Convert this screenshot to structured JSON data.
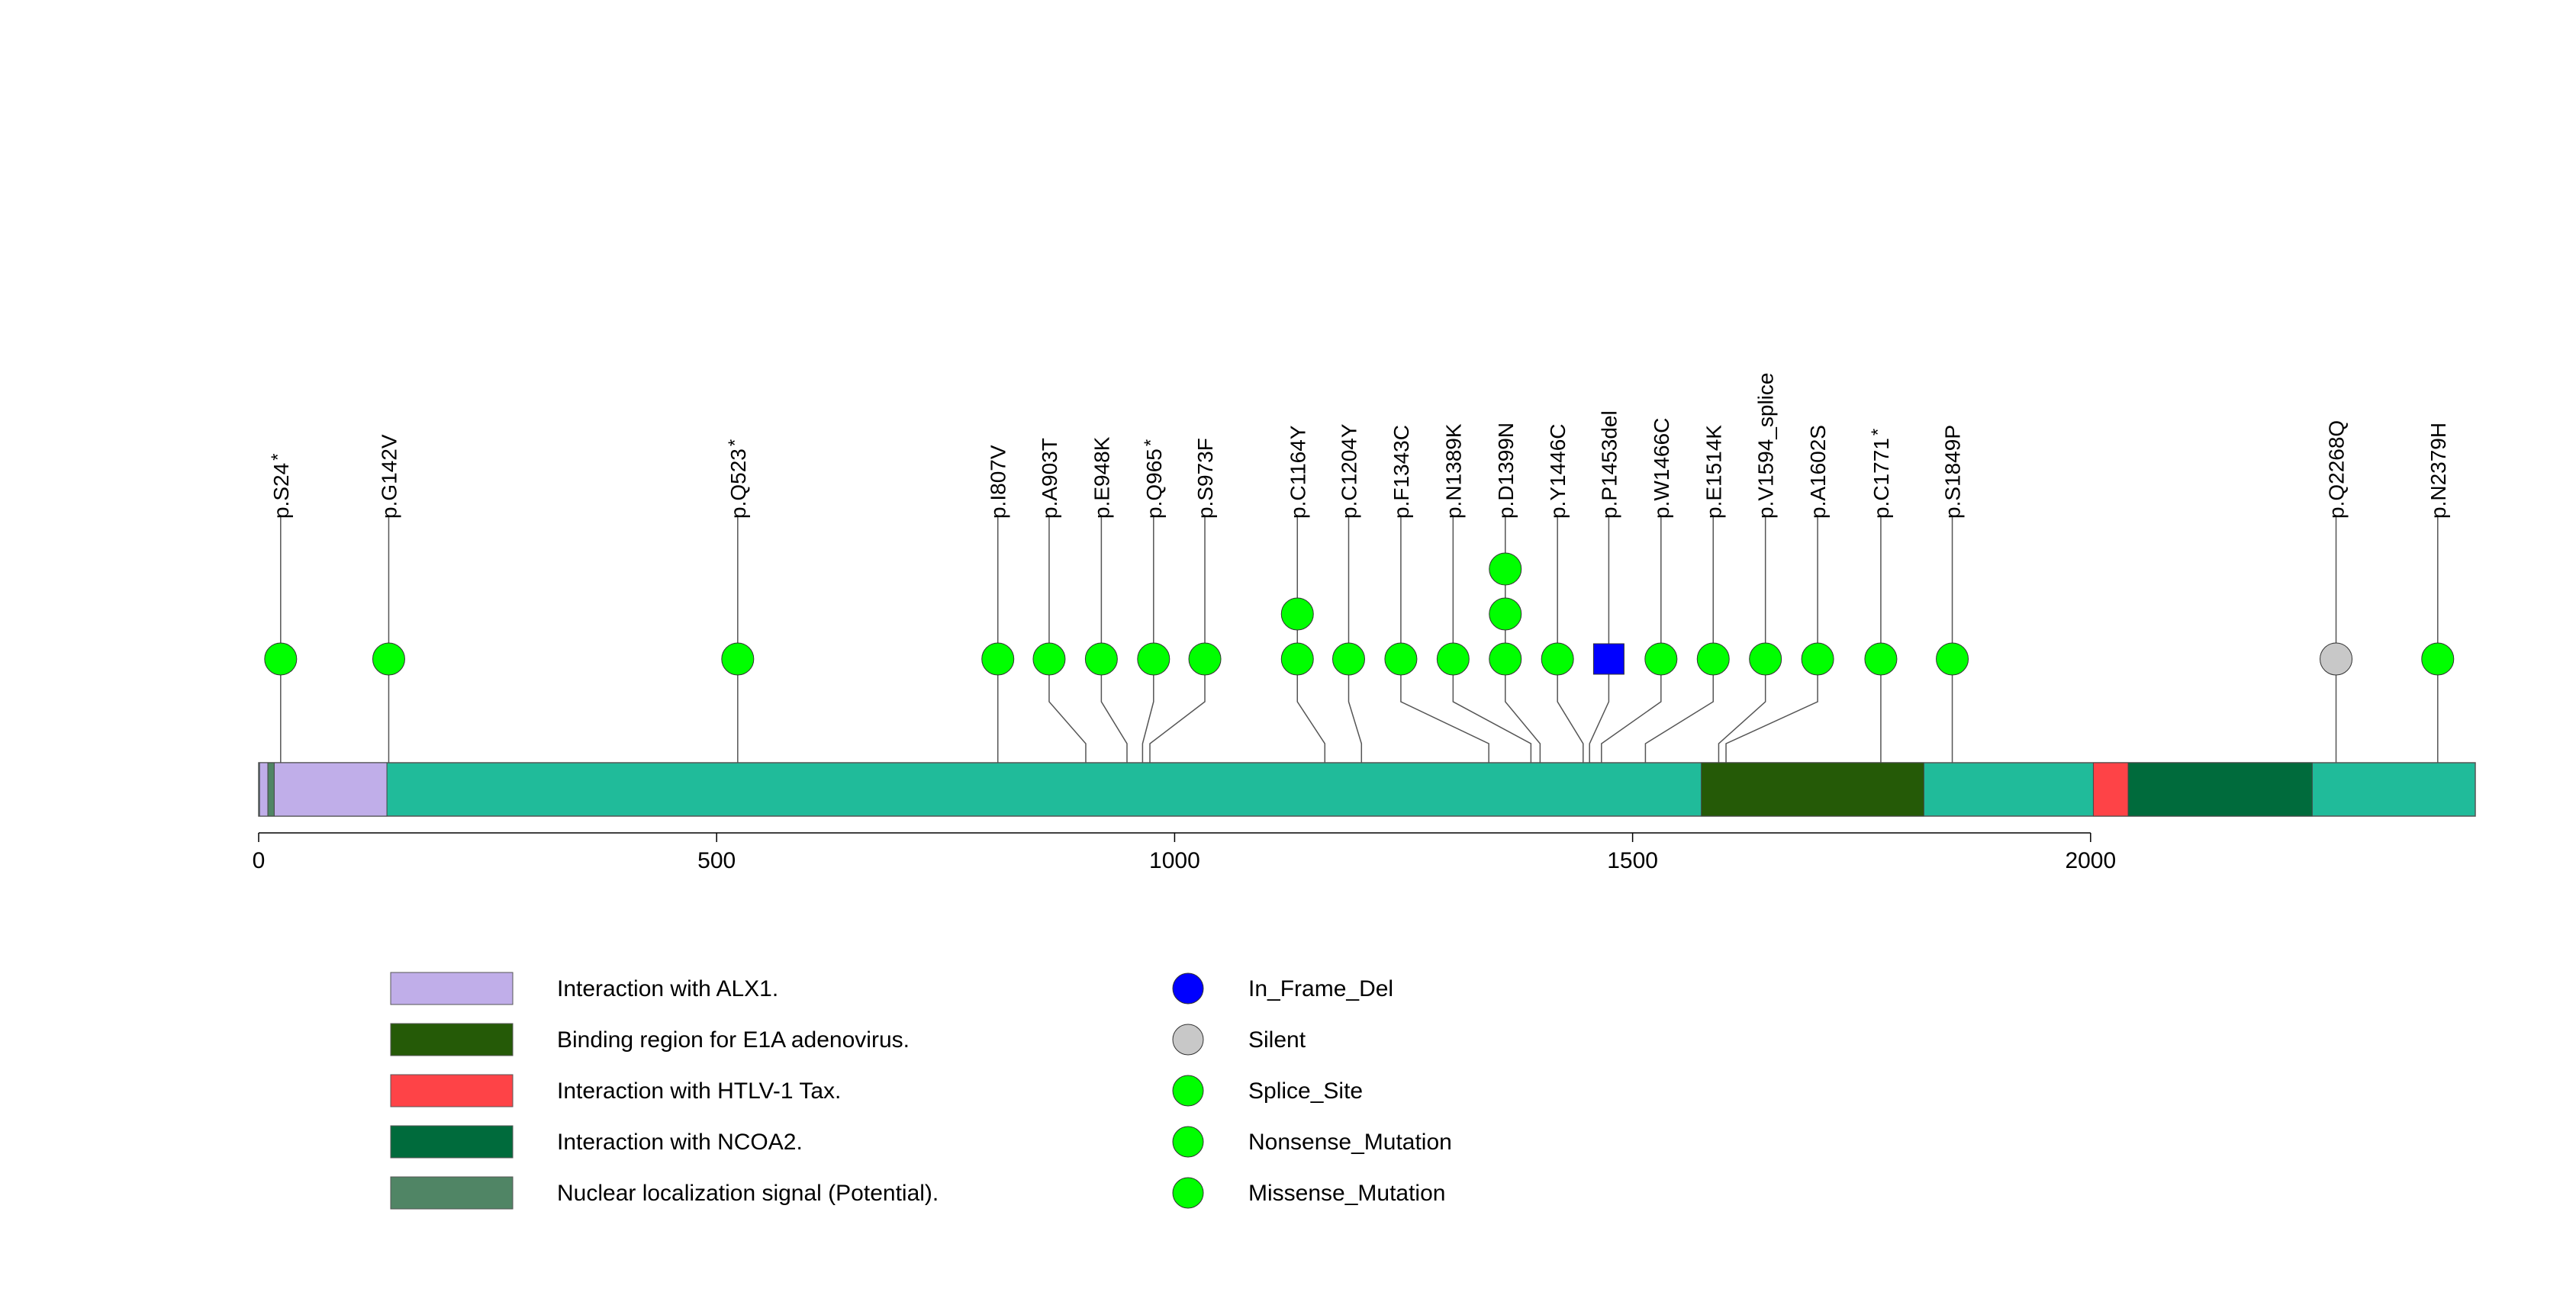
{
  "chart_data": {
    "type": "lollipop",
    "title": "",
    "xlabel": "",
    "ylabel": "",
    "xlim": [
      0,
      2420
    ],
    "axis_ticks": [
      0,
      500,
      1000,
      1500,
      2000
    ],
    "axis_tick_labels": [
      "0",
      "500",
      "1000",
      "1500",
      "2000"
    ],
    "protein_length": 2420,
    "backbone_color": "#20bb9a",
    "domains": [
      {
        "name": "Interaction with ALX1.",
        "start": 1,
        "end": 140,
        "color": "#c0aee9"
      },
      {
        "name": "Nuclear localization signal (Potential).",
        "start": 10,
        "end": 17,
        "color": "#508565"
      },
      {
        "name": "Binding region for E1A adenovirus.",
        "start": 1575,
        "end": 1818,
        "color": "#255a07"
      },
      {
        "name": "Interaction with HTLV-1 Tax.",
        "start": 2003,
        "end": 2041,
        "color": "#fe4347"
      },
      {
        "name": "Interaction with NCOA2.",
        "start": 2041,
        "end": 2242,
        "color": "#006b3c"
      }
    ],
    "mutations": [
      {
        "label": "p.S24",
        "star": true,
        "position": 24,
        "label_x": 24,
        "count": 1,
        "type": "Nonsense_Mutation"
      },
      {
        "label": "p.G142V",
        "star": false,
        "position": 142,
        "label_x": 142,
        "count": 1,
        "type": "Missense_Mutation"
      },
      {
        "label": "p.Q523",
        "star": true,
        "position": 523,
        "label_x": 523,
        "count": 1,
        "type": "Nonsense_Mutation"
      },
      {
        "label": "p.I807V",
        "star": false,
        "position": 807,
        "label_x": 807,
        "count": 1,
        "type": "Missense_Mutation"
      },
      {
        "label": "p.A903T",
        "star": false,
        "position": 903,
        "label_x": 863,
        "count": 1,
        "type": "Missense_Mutation"
      },
      {
        "label": "p.E948K",
        "star": false,
        "position": 948,
        "label_x": 920,
        "count": 1,
        "type": "Missense_Mutation"
      },
      {
        "label": "p.Q965",
        "star": true,
        "position": 965,
        "label_x": 977,
        "count": 1,
        "type": "Nonsense_Mutation"
      },
      {
        "label": "p.S973F",
        "star": false,
        "position": 973,
        "label_x": 1033,
        "count": 1,
        "type": "Missense_Mutation"
      },
      {
        "label": "p.C1164Y",
        "star": false,
        "position": 1164,
        "label_x": 1134,
        "count": 2,
        "type": "Missense_Mutation"
      },
      {
        "label": "p.C1204Y",
        "star": false,
        "position": 1204,
        "label_x": 1190,
        "count": 1,
        "type": "Missense_Mutation"
      },
      {
        "label": "p.F1343C",
        "star": false,
        "position": 1343,
        "label_x": 1247,
        "count": 1,
        "type": "Missense_Mutation"
      },
      {
        "label": "p.N1389K",
        "star": false,
        "position": 1389,
        "label_x": 1304,
        "count": 1,
        "type": "Missense_Mutation"
      },
      {
        "label": "p.D1399N",
        "star": false,
        "position": 1399,
        "label_x": 1361,
        "count": 3,
        "type": "Missense_Mutation"
      },
      {
        "label": "p.Y1446C",
        "star": false,
        "position": 1446,
        "label_x": 1418,
        "count": 1,
        "type": "Missense_Mutation"
      },
      {
        "label": "p.P1453del",
        "star": false,
        "position": 1453,
        "label_x": 1474,
        "count": 1,
        "type": "In_Frame_Del"
      },
      {
        "label": "p.W1466C",
        "star": false,
        "position": 1466,
        "label_x": 1531,
        "count": 1,
        "type": "Missense_Mutation"
      },
      {
        "label": "p.E1514K",
        "star": false,
        "position": 1514,
        "label_x": 1588,
        "count": 1,
        "type": "Missense_Mutation"
      },
      {
        "label": "p.V1594_splice",
        "star": false,
        "position": 1594,
        "label_x": 1645,
        "count": 1,
        "type": "Splice_Site"
      },
      {
        "label": "p.A1602S",
        "star": false,
        "position": 1602,
        "label_x": 1702,
        "count": 1,
        "type": "Missense_Mutation"
      },
      {
        "label": "p.C1771",
        "star": true,
        "position": 1771,
        "label_x": 1771,
        "count": 1,
        "type": "Nonsense_Mutation"
      },
      {
        "label": "p.S1849P",
        "star": false,
        "position": 1849,
        "label_x": 1849,
        "count": 1,
        "type": "Missense_Mutation"
      },
      {
        "label": "p.Q2268Q",
        "star": false,
        "position": 2268,
        "label_x": 2268,
        "count": 1,
        "type": "Silent"
      },
      {
        "label": "p.N2379H",
        "star": false,
        "position": 2379,
        "label_x": 2379,
        "count": 1,
        "type": "Missense_Mutation"
      }
    ],
    "mutation_type_colors": {
      "In_Frame_Del": "#0000ff",
      "Silent": "#c8c8c8",
      "Splice_Site": "#00ff00",
      "Nonsense_Mutation": "#00ff00",
      "Missense_Mutation": "#00ff00"
    },
    "domain_legend": [
      {
        "label": "Interaction with ALX1.",
        "color": "#c0aee9"
      },
      {
        "label": "Binding region for E1A adenovirus.",
        "color": "#255a07"
      },
      {
        "label": "Interaction with HTLV-1 Tax.",
        "color": "#fe4347"
      },
      {
        "label": "Interaction with NCOA2.",
        "color": "#006b3c"
      },
      {
        "label": "Nuclear localization signal (Potential).",
        "color": "#508565"
      }
    ],
    "mutation_legend": [
      {
        "label": "In_Frame_Del",
        "color": "#0000ff"
      },
      {
        "label": "Silent",
        "color": "#c8c8c8"
      },
      {
        "label": "Splice_Site",
        "color": "#00ff00"
      },
      {
        "label": "Nonsense_Mutation",
        "color": "#00ff00"
      },
      {
        "label": "Missense_Mutation",
        "color": "#00ff00"
      }
    ]
  }
}
